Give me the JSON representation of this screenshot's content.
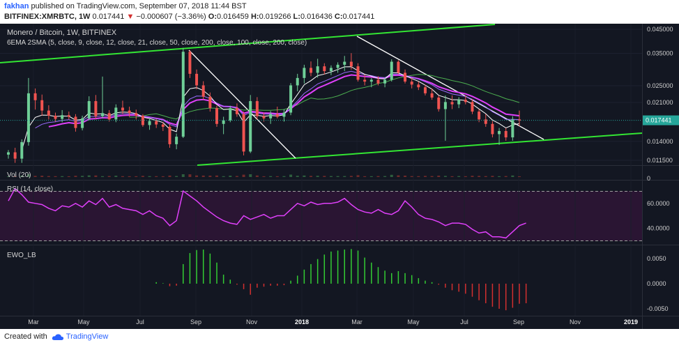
{
  "header": {
    "author": "fakhan",
    "published": "published on TradingView.com, September 07, 2018 11:44 BST",
    "symbol": "BITFINEX:XMRBTC, 1W",
    "price": "0.017441",
    "change_arrow": "▼",
    "change": "−0.000607 (−3.36%)",
    "o_label": "O:",
    "o": "0.016459",
    "h_label": "H:",
    "h": "0.019266",
    "l_label": "L:",
    "l": "0.016436",
    "c_label": "C:",
    "c": "0.017441"
  },
  "footer": {
    "created": "Created with",
    "brand": "TradingView"
  },
  "colors": {
    "background": "#131722",
    "rsi_band": "#2a1533",
    "up": "#26a69a",
    "up_light": "#6fcf97",
    "down": "#ef5350",
    "down_dark": "#b71c1c",
    "ema_fast": "#ffffff",
    "ema_mid": "#9c6bff",
    "ema_slow": "#e040fb",
    "sma200": "#4caf50",
    "trendline_green": "#33e633",
    "trendline_white": "#ffffff",
    "rsi_line": "#e040fb",
    "ewo_up": "#33cc33",
    "ewo_down": "#d32f2f",
    "last_price_tag": "#26a69a"
  },
  "chart_data": [
    {
      "type": "candlestick",
      "title": "Monero / Bitcoin, 1W, BITFINEX",
      "subtitle": "6EMA 2SMA (5, close, 9, close, 12, close, 21, close, 50, close, 200, close, 100, close, 200, close)",
      "x_ticks": [
        "Mar",
        "May",
        "Jul",
        "Sep",
        "Nov",
        "2018",
        "Mar",
        "May",
        "Jul",
        "Sep",
        "Nov",
        "2019"
      ],
      "y_scale": "log",
      "y_ticks": [
        "0.045000",
        "0.035000",
        "0.025000",
        "0.021000",
        "0.014000",
        "0.011500"
      ],
      "y_tick_values": [
        0.045,
        0.035,
        0.025,
        0.021,
        0.014,
        0.0115
      ],
      "last_price": 0.017441,
      "last_price_label": "0.017441",
      "candles": [
        {
          "o": 0.0122,
          "h": 0.0128,
          "l": 0.0117,
          "c": 0.0125
        },
        {
          "o": 0.0125,
          "h": 0.0131,
          "l": 0.0112,
          "c": 0.0117
        },
        {
          "o": 0.0117,
          "h": 0.0143,
          "l": 0.0112,
          "c": 0.0139
        },
        {
          "o": 0.0139,
          "h": 0.0271,
          "l": 0.0134,
          "c": 0.0231
        },
        {
          "o": 0.0231,
          "h": 0.0243,
          "l": 0.0195,
          "c": 0.0215
        },
        {
          "o": 0.0215,
          "h": 0.0228,
          "l": 0.0183,
          "c": 0.0193
        },
        {
          "o": 0.0193,
          "h": 0.0204,
          "l": 0.0176,
          "c": 0.0183
        },
        {
          "o": 0.0183,
          "h": 0.0189,
          "l": 0.0172,
          "c": 0.0177
        },
        {
          "o": 0.0177,
          "h": 0.0194,
          "l": 0.0171,
          "c": 0.0184
        },
        {
          "o": 0.0184,
          "h": 0.0191,
          "l": 0.0176,
          "c": 0.0181
        },
        {
          "o": 0.0181,
          "h": 0.0186,
          "l": 0.0155,
          "c": 0.0161
        },
        {
          "o": 0.0161,
          "h": 0.0183,
          "l": 0.0157,
          "c": 0.0178
        },
        {
          "o": 0.0178,
          "h": 0.0224,
          "l": 0.0174,
          "c": 0.0213
        },
        {
          "o": 0.0213,
          "h": 0.0227,
          "l": 0.0176,
          "c": 0.0182
        },
        {
          "o": 0.0182,
          "h": 0.0275,
          "l": 0.0178,
          "c": 0.0188
        },
        {
          "o": 0.0188,
          "h": 0.0194,
          "l": 0.0172,
          "c": 0.0176
        },
        {
          "o": 0.0176,
          "h": 0.0206,
          "l": 0.0171,
          "c": 0.0199
        },
        {
          "o": 0.0199,
          "h": 0.0214,
          "l": 0.0186,
          "c": 0.0193
        },
        {
          "o": 0.0193,
          "h": 0.0201,
          "l": 0.0181,
          "c": 0.0188
        },
        {
          "o": 0.0188,
          "h": 0.0195,
          "l": 0.0176,
          "c": 0.0183
        },
        {
          "o": 0.0183,
          "h": 0.0186,
          "l": 0.0163,
          "c": 0.0166
        },
        {
          "o": 0.0166,
          "h": 0.0178,
          "l": 0.0158,
          "c": 0.0173
        },
        {
          "o": 0.0173,
          "h": 0.0177,
          "l": 0.0161,
          "c": 0.0167
        },
        {
          "o": 0.0167,
          "h": 0.0171,
          "l": 0.0156,
          "c": 0.0163
        },
        {
          "o": 0.0163,
          "h": 0.0168,
          "l": 0.0131,
          "c": 0.0136
        },
        {
          "o": 0.0136,
          "h": 0.0152,
          "l": 0.0129,
          "c": 0.0147
        },
        {
          "o": 0.0147,
          "h": 0.0371,
          "l": 0.0145,
          "c": 0.0356
        },
        {
          "o": 0.0356,
          "h": 0.0362,
          "l": 0.0271,
          "c": 0.0283
        },
        {
          "o": 0.0283,
          "h": 0.0296,
          "l": 0.0241,
          "c": 0.0251
        },
        {
          "o": 0.0251,
          "h": 0.0262,
          "l": 0.0216,
          "c": 0.0223
        },
        {
          "o": 0.0223,
          "h": 0.0233,
          "l": 0.0191,
          "c": 0.0198
        },
        {
          "o": 0.0198,
          "h": 0.0203,
          "l": 0.0163,
          "c": 0.0168
        },
        {
          "o": 0.0168,
          "h": 0.0181,
          "l": 0.0151,
          "c": 0.0174
        },
        {
          "o": 0.0174,
          "h": 0.0203,
          "l": 0.0171,
          "c": 0.0198
        },
        {
          "o": 0.0198,
          "h": 0.0208,
          "l": 0.0181,
          "c": 0.0186
        },
        {
          "o": 0.0186,
          "h": 0.0191,
          "l": 0.0121,
          "c": 0.0126
        },
        {
          "o": 0.0126,
          "h": 0.0227,
          "l": 0.0124,
          "c": 0.0213
        },
        {
          "o": 0.0213,
          "h": 0.0222,
          "l": 0.0176,
          "c": 0.0182
        },
        {
          "o": 0.0182,
          "h": 0.0189,
          "l": 0.0172,
          "c": 0.0178
        },
        {
          "o": 0.0178,
          "h": 0.0192,
          "l": 0.0168,
          "c": 0.0186
        },
        {
          "o": 0.0186,
          "h": 0.0201,
          "l": 0.0178,
          "c": 0.0181
        },
        {
          "o": 0.0181,
          "h": 0.0196,
          "l": 0.0172,
          "c": 0.0189
        },
        {
          "o": 0.0189,
          "h": 0.0257,
          "l": 0.0184,
          "c": 0.0251
        },
        {
          "o": 0.0251,
          "h": 0.0283,
          "l": 0.0236,
          "c": 0.0271
        },
        {
          "o": 0.0271,
          "h": 0.0311,
          "l": 0.0256,
          "c": 0.0301
        },
        {
          "o": 0.0301,
          "h": 0.0322,
          "l": 0.0276,
          "c": 0.0286
        },
        {
          "o": 0.0286,
          "h": 0.0331,
          "l": 0.0272,
          "c": 0.0306
        },
        {
          "o": 0.0306,
          "h": 0.0316,
          "l": 0.0281,
          "c": 0.0291
        },
        {
          "o": 0.0291,
          "h": 0.0309,
          "l": 0.0279,
          "c": 0.0301
        },
        {
          "o": 0.0301,
          "h": 0.0319,
          "l": 0.0286,
          "c": 0.0311
        },
        {
          "o": 0.0311,
          "h": 0.0341,
          "l": 0.0291,
          "c": 0.0321
        },
        {
          "o": 0.0321,
          "h": 0.0351,
          "l": 0.0296,
          "c": 0.0306
        },
        {
          "o": 0.0306,
          "h": 0.0316,
          "l": 0.0261,
          "c": 0.0266
        },
        {
          "o": 0.0266,
          "h": 0.0281,
          "l": 0.0251,
          "c": 0.0261
        },
        {
          "o": 0.0261,
          "h": 0.0271,
          "l": 0.0246,
          "c": 0.0266
        },
        {
          "o": 0.0266,
          "h": 0.0276,
          "l": 0.0251,
          "c": 0.0256
        },
        {
          "o": 0.0256,
          "h": 0.0272,
          "l": 0.0246,
          "c": 0.0266
        },
        {
          "o": 0.0266,
          "h": 0.0329,
          "l": 0.0261,
          "c": 0.0321
        },
        {
          "o": 0.0321,
          "h": 0.0326,
          "l": 0.0281,
          "c": 0.0286
        },
        {
          "o": 0.0286,
          "h": 0.0296,
          "l": 0.0256,
          "c": 0.0261
        },
        {
          "o": 0.0261,
          "h": 0.0271,
          "l": 0.0243,
          "c": 0.0253
        },
        {
          "o": 0.0253,
          "h": 0.0261,
          "l": 0.0239,
          "c": 0.0246
        },
        {
          "o": 0.0246,
          "h": 0.0253,
          "l": 0.0226,
          "c": 0.0231
        },
        {
          "o": 0.0231,
          "h": 0.0243,
          "l": 0.0216,
          "c": 0.0221
        },
        {
          "o": 0.0221,
          "h": 0.0226,
          "l": 0.0191,
          "c": 0.0196
        },
        {
          "o": 0.0196,
          "h": 0.0226,
          "l": 0.0141,
          "c": 0.0211
        },
        {
          "o": 0.0211,
          "h": 0.0226,
          "l": 0.0196,
          "c": 0.0206
        },
        {
          "o": 0.0206,
          "h": 0.0222,
          "l": 0.0198,
          "c": 0.0216
        },
        {
          "o": 0.0216,
          "h": 0.0226,
          "l": 0.0206,
          "c": 0.0211
        },
        {
          "o": 0.0211,
          "h": 0.0218,
          "l": 0.0186,
          "c": 0.0191
        },
        {
          "o": 0.0191,
          "h": 0.0196,
          "l": 0.0171,
          "c": 0.0176
        },
        {
          "o": 0.0176,
          "h": 0.0186,
          "l": 0.0163,
          "c": 0.0168
        },
        {
          "o": 0.0168,
          "h": 0.0173,
          "l": 0.0146,
          "c": 0.0151
        },
        {
          "o": 0.0151,
          "h": 0.0161,
          "l": 0.0135,
          "c": 0.0156
        },
        {
          "o": 0.0156,
          "h": 0.0161,
          "l": 0.0141,
          "c": 0.0146
        },
        {
          "o": 0.0146,
          "h": 0.0182,
          "l": 0.0141,
          "c": 0.0176
        },
        {
          "o": 0.0176,
          "h": 0.0193,
          "l": 0.0164,
          "c": 0.0174
        }
      ]
    },
    {
      "type": "bar",
      "title": "Vol (20)",
      "y_ticks": [
        "0"
      ]
    },
    {
      "type": "line",
      "title": "RSI (14, close)",
      "y_ticks": [
        "60.0000",
        "40.0000"
      ],
      "y_tick_values": [
        60,
        40
      ],
      "bands": [
        70,
        30
      ],
      "values": [
        62,
        72,
        67,
        61,
        60,
        59,
        56,
        54,
        58,
        57,
        60,
        57,
        62,
        59,
        64,
        57,
        59,
        56,
        55,
        54,
        51,
        54,
        50,
        48,
        42,
        46,
        70,
        66,
        62,
        57,
        53,
        49,
        46,
        44,
        43,
        50,
        47,
        49,
        51,
        48,
        50,
        50,
        55,
        60,
        58,
        61,
        59,
        60,
        60,
        61,
        64,
        59,
        55,
        53,
        52,
        55,
        52,
        51,
        54,
        62,
        57,
        51,
        48,
        47,
        45,
        42,
        44,
        44,
        43,
        39,
        36,
        37,
        33,
        33,
        32,
        37,
        42,
        44
      ]
    },
    {
      "type": "bar",
      "title": "EWO_LB",
      "y_ticks": [
        "0.0050",
        "0.0000",
        "-0.0050"
      ],
      "y_tick_values": [
        0.005,
        0,
        -0.005
      ],
      "values": [
        0,
        0,
        0,
        0,
        0,
        0,
        0,
        0,
        0,
        0,
        0,
        0,
        0,
        0,
        0,
        0,
        0,
        0,
        0,
        0,
        0,
        0,
        0.0003,
        0.0001,
        -0.0005,
        -0.0004,
        0.0039,
        0.0061,
        0.0067,
        0.0068,
        0.006,
        0.0042,
        0.0018,
        0.0008,
        -0.0002,
        -0.0011,
        -0.0022,
        -0.0008,
        -0.0006,
        -0.0004,
        -0.0004,
        -0.0003,
        0.0006,
        0.0016,
        0.0028,
        0.0039,
        0.0049,
        0.0058,
        0.0064,
        0.0066,
        0.0068,
        0.0069,
        0.0066,
        0.0052,
        0.0042,
        0.0033,
        0.0026,
        0.0021,
        0.0025,
        0.0021,
        0.0017,
        0.0011,
        0.0006,
        0.0003,
        -0.0002,
        -0.0008,
        -0.0013,
        -0.0016,
        -0.002,
        -0.0026,
        -0.0033,
        -0.0039,
        -0.0046,
        -0.005,
        -0.0053,
        -0.0048,
        -0.004,
        -0.0039
      ]
    }
  ]
}
